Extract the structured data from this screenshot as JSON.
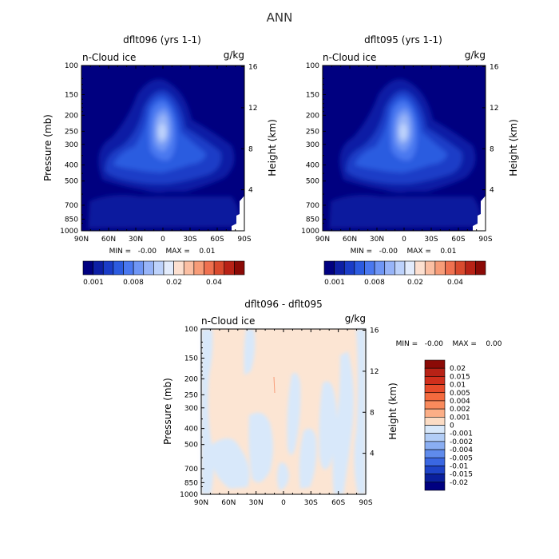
{
  "main_title": "ANN",
  "chart_data": [
    {
      "type": "heatmap",
      "title": "dflt096 (yrs 1-1)",
      "variable": "n-Cloud ice",
      "units": "g/kg",
      "ylabel": "Pressure (mb)",
      "ylabel_right": "Height (km)",
      "x_ticks": [
        "90N",
        "60N",
        "30N",
        "0",
        "30S",
        "60S",
        "90S"
      ],
      "y_ticks": [
        "100",
        "150",
        "200",
        "250",
        "300",
        "400",
        "500",
        "700",
        "850",
        "1000"
      ],
      "height_ticks": [
        "16",
        "12",
        "8",
        "4"
      ],
      "stats": "MIN =   -0.00    MAX =    0.01",
      "colorbar_labels": [
        "0.001",
        "0.008",
        "0.02",
        "0.04"
      ],
      "colors": [
        "#000080",
        "#0d1fa5",
        "#1a3cc7",
        "#2c5be0",
        "#4a78f0",
        "#6f96f5",
        "#97b4f8",
        "#bdd2fb",
        "#e3ecfc",
        "#fde0d0",
        "#fbbfa3",
        "#f79c78",
        "#ef7150",
        "#d94a2e",
        "#b82216",
        "#8b0a06"
      ]
    },
    {
      "type": "heatmap",
      "title": "dflt095 (yrs 1-1)",
      "variable": "n-Cloud ice",
      "units": "g/kg",
      "ylabel": "Pressure (mb)",
      "ylabel_right": "Height (km)",
      "x_ticks": [
        "90N",
        "60N",
        "30N",
        "0",
        "30S",
        "60S",
        "90S"
      ],
      "y_ticks": [
        "100",
        "150",
        "200",
        "250",
        "300",
        "400",
        "500",
        "700",
        "850",
        "1000"
      ],
      "height_ticks": [
        "16",
        "12",
        "8",
        "4"
      ],
      "stats": "MIN =   -0.00    MAX =    0.01",
      "colorbar_labels": [
        "0.001",
        "0.008",
        "0.02",
        "0.04"
      ]
    },
    {
      "type": "heatmap",
      "title": "dflt096 - dflt095",
      "variable": "n-Cloud ice",
      "units": "g/kg",
      "ylabel": "Pressure (mb)",
      "ylabel_right": "Height (km)",
      "x_ticks": [
        "90N",
        "60N",
        "30N",
        "0",
        "30S",
        "60S",
        "90S"
      ],
      "y_ticks": [
        "100",
        "150",
        "200",
        "250",
        "300",
        "400",
        "500",
        "700",
        "850",
        "1000"
      ],
      "height_ticks": [
        "16",
        "12",
        "8",
        "4"
      ],
      "stats": "MIN =   -0.00    MAX =    0.00",
      "colorbar_labels": [
        "0.02",
        "0.015",
        "0.01",
        "0.005",
        "0.004",
        "0.002",
        "0.001",
        "0",
        "-0.001",
        "-0.002",
        "-0.004",
        "-0.005",
        "-0.01",
        "-0.015",
        "-0.02"
      ],
      "colors": [
        "#8b0a06",
        "#b82216",
        "#d12f1c",
        "#e84b2a",
        "#f46a3e",
        "#f98a5c",
        "#fcae86",
        "#fcdcc4",
        "#d8e8fa",
        "#b2cdf6",
        "#8aaef2",
        "#5f8bec",
        "#3a67e2",
        "#1e43c7",
        "#0a1f9c",
        "#000080"
      ]
    }
  ]
}
